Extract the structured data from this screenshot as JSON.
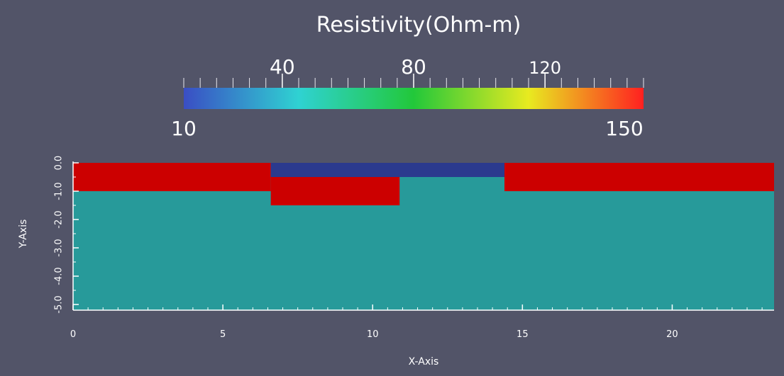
{
  "chart_data": {
    "type": "heatmap",
    "background": "#525468",
    "colorbar": {
      "title": "Resistivity(Ohm-m)",
      "min": 10,
      "max": 150,
      "min_label": "10",
      "max_label": "150",
      "major_ticks": [
        {
          "value": 40,
          "label": "40"
        },
        {
          "value": 80,
          "label": "80"
        },
        {
          "value": 120,
          "label": "120"
        }
      ],
      "minor_tick_step": 5,
      "colormap_stops": [
        "#3a4ec4",
        "#2fd2d2",
        "#22c83a",
        "#e8ea20",
        "#ff2020"
      ]
    },
    "xlabel": "X-Axis",
    "ylabel": "Y-Axis",
    "xlim": [
      0,
      23.4
    ],
    "ylim": [
      -5.2,
      0.05
    ],
    "xticks": [
      {
        "value": 0,
        "label": "0"
      },
      {
        "value": 5,
        "label": "5"
      },
      {
        "value": 10,
        "label": "10"
      },
      {
        "value": 15,
        "label": "15"
      },
      {
        "value": 20,
        "label": "20"
      }
    ],
    "x_minor_step": 0.5,
    "yticks": [
      {
        "value": 0,
        "label": "0.0"
      },
      {
        "value": -1,
        "label": "-1.0"
      },
      {
        "value": -2,
        "label": "-2.0"
      },
      {
        "value": -3,
        "label": "-3.0"
      },
      {
        "value": -4,
        "label": "-4.0"
      },
      {
        "value": -5,
        "label": "-5.0"
      }
    ],
    "y_minor_step": 0.5,
    "regions": [
      {
        "name": "background",
        "x0": 0,
        "x1": 23.4,
        "y_top": 0,
        "y_bottom": -5.2,
        "resistivity": 40,
        "color": "#279a9a"
      },
      {
        "name": "left-surface",
        "x0": 0,
        "x1": 6.6,
        "y_top": 0,
        "y_bottom": -1.0,
        "resistivity": 150,
        "color": "#cc0000"
      },
      {
        "name": "middle-surface",
        "x0": 6.6,
        "x1": 14.4,
        "y_top": 0,
        "y_bottom": -0.5,
        "resistivity": 10,
        "color": "#2b3a8e"
      },
      {
        "name": "middle-lower",
        "x0": 6.6,
        "x1": 10.9,
        "y_top": -0.5,
        "y_bottom": -1.5,
        "resistivity": 150,
        "color": "#cc0000"
      },
      {
        "name": "right-surface",
        "x0": 14.4,
        "x1": 23.4,
        "y_top": 0,
        "y_bottom": -1.0,
        "resistivity": 150,
        "color": "#cc0000"
      }
    ]
  }
}
